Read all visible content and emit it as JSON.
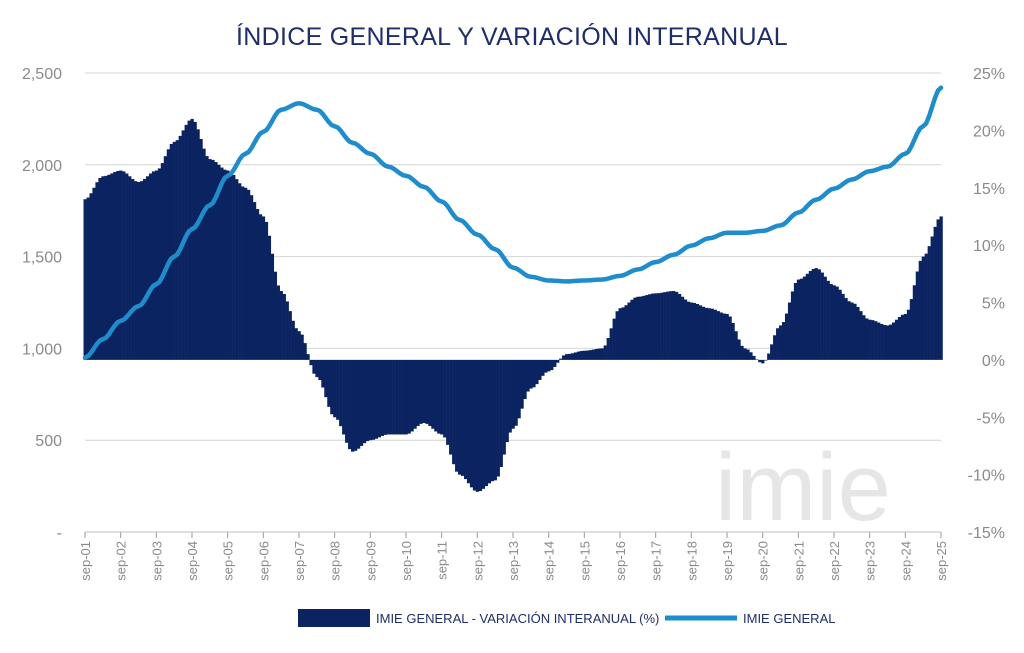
{
  "chart_data": {
    "type": "bar+line",
    "title": "ÍNDICE GENERAL Y VARIACIÓN INTERANUAL",
    "watermark": "imie",
    "colors": {
      "bars": "#0b2461",
      "line": "#1f8ccc",
      "title": "#1f2d6b",
      "grid": "#d4d4d4",
      "ticks": "#8a8a8a"
    },
    "y_left": {
      "ticks": [
        "-",
        "500",
        "1,000",
        "1,500",
        "2,000",
        "2,500"
      ],
      "values": [
        0,
        500,
        1000,
        1500,
        2000,
        2500
      ],
      "range": [
        0,
        2500
      ]
    },
    "y_right": {
      "ticks": [
        "-15%",
        "-10%",
        "-5%",
        "0%",
        "5%",
        "10%",
        "15%",
        "20%",
        "25%"
      ],
      "values": [
        -15,
        -10,
        -5,
        0,
        5,
        10,
        15,
        20,
        25
      ],
      "range": [
        -15,
        25
      ]
    },
    "x_ticks": [
      "sep-01",
      "sep-02",
      "sep-03",
      "sep-04",
      "sep-05",
      "sep-06",
      "sep-07",
      "sep-08",
      "sep-09",
      "sep-10",
      "sep-11",
      "sep-12",
      "sep-13",
      "sep-14",
      "sep-15",
      "sep-16",
      "sep-17",
      "sep-18",
      "sep-19",
      "sep-20",
      "sep-21",
      "sep-22",
      "sep-23",
      "sep-24",
      "sep-25"
    ],
    "grid": "horizontal",
    "legend_position": "bottom",
    "series": [
      {
        "name": "IMIE GENERAL - VARIACIÓN INTERANUAL (%)",
        "kind": "bar",
        "axis": "right",
        "points": [
          [
            "sep-01",
            14.0
          ],
          [
            "mar-02",
            16.0
          ],
          [
            "sep-02",
            16.5
          ],
          [
            "mar-03",
            15.5
          ],
          [
            "sep-03",
            16.5
          ],
          [
            "mar-04",
            19.0
          ],
          [
            "sep-04",
            21.0
          ],
          [
            "mar-05",
            17.5
          ],
          [
            "sep-05",
            16.5
          ],
          [
            "mar-06",
            15.0
          ],
          [
            "sep-06",
            12.5
          ],
          [
            "mar-07",
            6.0
          ],
          [
            "sep-07",
            2.5
          ],
          [
            "mar-08",
            -1.5
          ],
          [
            "sep-08",
            -5.0
          ],
          [
            "mar-09",
            -8.0
          ],
          [
            "sep-09",
            -7.0
          ],
          [
            "mar-10",
            -6.5
          ],
          [
            "sep-10",
            -6.5
          ],
          [
            "mar-11",
            -5.5
          ],
          [
            "sep-11",
            -6.5
          ],
          [
            "mar-12",
            -10.0
          ],
          [
            "sep-12",
            -11.5
          ],
          [
            "mar-13",
            -10.5
          ],
          [
            "sep-13",
            -6.0
          ],
          [
            "mar-14",
            -2.5
          ],
          [
            "sep-14",
            -1.0
          ],
          [
            "mar-15",
            0.5
          ],
          [
            "sep-15",
            0.8
          ],
          [
            "mar-16",
            1.0
          ],
          [
            "sep-16",
            4.5
          ],
          [
            "mar-17",
            5.5
          ],
          [
            "sep-17",
            5.8
          ],
          [
            "mar-18",
            6.0
          ],
          [
            "sep-18",
            5.0
          ],
          [
            "mar-19",
            4.5
          ],
          [
            "sep-19",
            4.0
          ],
          [
            "mar-20",
            1.0
          ],
          [
            "sep-20",
            -0.3
          ],
          [
            "mar-21",
            3.0
          ],
          [
            "sep-21",
            7.0
          ],
          [
            "mar-22",
            8.0
          ],
          [
            "sep-22",
            6.5
          ],
          [
            "mar-23",
            5.0
          ],
          [
            "sep-23",
            3.5
          ],
          [
            "mar-24",
            3.0
          ],
          [
            "sep-24",
            4.0
          ],
          [
            "mar-25",
            9.0
          ],
          [
            "sep-25",
            12.5
          ]
        ]
      },
      {
        "name": "IMIE GENERAL",
        "kind": "line",
        "axis": "left",
        "points": [
          [
            "sep-01",
            950
          ],
          [
            "mar-02",
            1050
          ],
          [
            "sep-02",
            1150
          ],
          [
            "mar-03",
            1230
          ],
          [
            "sep-03",
            1350
          ],
          [
            "mar-04",
            1500
          ],
          [
            "sep-04",
            1650
          ],
          [
            "mar-05",
            1780
          ],
          [
            "sep-05",
            1940
          ],
          [
            "mar-06",
            2060
          ],
          [
            "sep-06",
            2180
          ],
          [
            "mar-07",
            2300
          ],
          [
            "sep-07",
            2335
          ],
          [
            "mar-08",
            2300
          ],
          [
            "sep-08",
            2210
          ],
          [
            "mar-09",
            2120
          ],
          [
            "sep-09",
            2060
          ],
          [
            "mar-10",
            1990
          ],
          [
            "sep-10",
            1940
          ],
          [
            "mar-11",
            1880
          ],
          [
            "sep-11",
            1800
          ],
          [
            "mar-12",
            1700
          ],
          [
            "sep-12",
            1620
          ],
          [
            "mar-13",
            1540
          ],
          [
            "sep-13",
            1440
          ],
          [
            "mar-14",
            1390
          ],
          [
            "sep-14",
            1370
          ],
          [
            "mar-15",
            1365
          ],
          [
            "sep-15",
            1370
          ],
          [
            "mar-16",
            1375
          ],
          [
            "sep-16",
            1395
          ],
          [
            "mar-17",
            1430
          ],
          [
            "sep-17",
            1470
          ],
          [
            "mar-18",
            1510
          ],
          [
            "sep-18",
            1560
          ],
          [
            "mar-19",
            1600
          ],
          [
            "sep-19",
            1630
          ],
          [
            "mar-20",
            1630
          ],
          [
            "sep-20",
            1640
          ],
          [
            "mar-21",
            1670
          ],
          [
            "sep-21",
            1740
          ],
          [
            "mar-22",
            1810
          ],
          [
            "sep-22",
            1870
          ],
          [
            "mar-23",
            1920
          ],
          [
            "sep-23",
            1965
          ],
          [
            "mar-24",
            1990
          ],
          [
            "sep-24",
            2060
          ],
          [
            "mar-25",
            2210
          ],
          [
            "sep-25",
            2420
          ]
        ]
      }
    ]
  }
}
